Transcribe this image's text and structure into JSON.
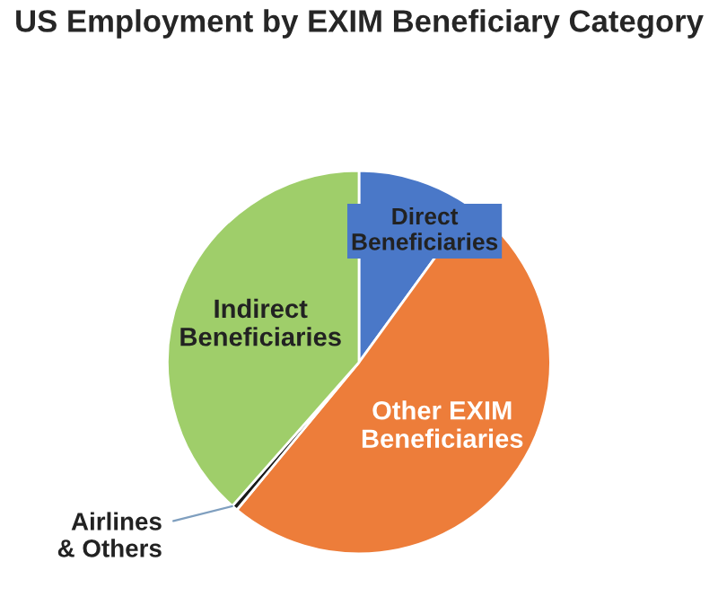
{
  "chart_data": {
    "type": "pie",
    "title": "US Employment by EXIM Beneficiary Category",
    "categories": [
      "Direct Beneficiaries",
      "Other EXIM Beneficiaries",
      "Airlines & Others",
      "Indirect Beneficiaries"
    ],
    "values": [
      10,
      51,
      0.5,
      38.5
    ],
    "colors": [
      "#4a78c8",
      "#ed7d3a",
      "#1a1a1a",
      "#9fce6a"
    ],
    "legend": false
  }
}
